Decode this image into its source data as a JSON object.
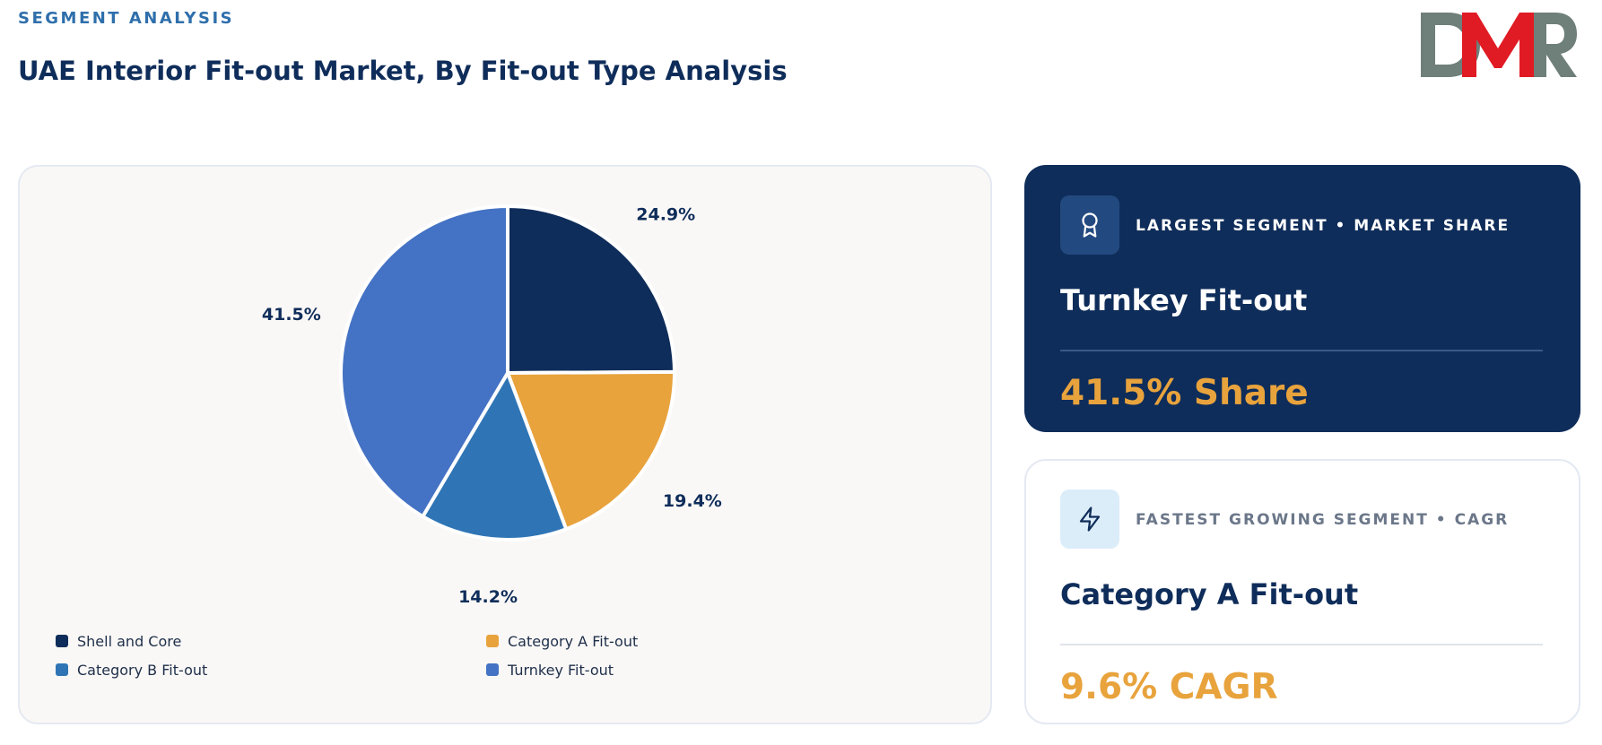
{
  "header": {
    "eyebrow": "SEGMENT ANALYSIS",
    "title": "UAE Interior Fit-out Market, By Fit-out Type Analysis"
  },
  "logo": {
    "text": "DMR",
    "colors": {
      "d": "#6f7f7a",
      "m": "#e01b24",
      "r": "#6f7f7a"
    }
  },
  "chart_data": {
    "type": "pie",
    "slices": [
      {
        "label": "Shell and Core",
        "value": 24.9,
        "display": "24.9%",
        "color": "#0f2d5a"
      },
      {
        "label": "Category A Fit-out",
        "value": 19.4,
        "display": "19.4%",
        "color": "#e8a33d"
      },
      {
        "label": "Category B Fit-out",
        "value": 14.2,
        "display": "14.2%",
        "color": "#2f75b5"
      },
      {
        "label": "Turnkey Fit-out",
        "value": 41.5,
        "display": "41.5%",
        "color": "#4472c4"
      }
    ],
    "start_angle": "12 o'clock",
    "direction": "clockwise",
    "legend": {
      "position": "bottom",
      "columns": 2,
      "order": [
        0,
        1,
        2,
        3
      ]
    }
  },
  "cards": {
    "largest": {
      "icon": "award-icon",
      "kicker": "LARGEST SEGMENT • MARKET SHARE",
      "name": "Turnkey Fit-out",
      "value": "41.5% Share"
    },
    "fastest": {
      "icon": "lightning-icon",
      "kicker": "FASTEST GROWING SEGMENT • CAGR",
      "name": "Category A Fit-out",
      "value": "9.6% CAGR"
    }
  }
}
